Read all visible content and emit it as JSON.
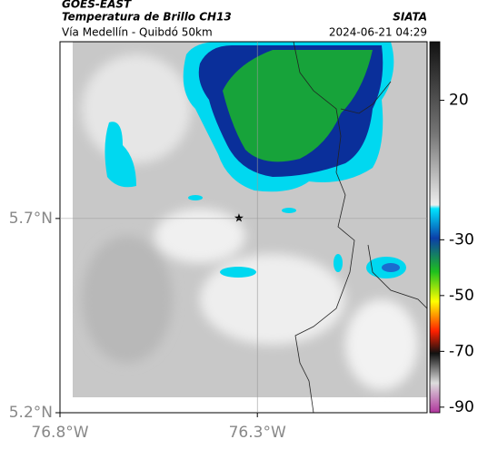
{
  "header": {
    "source": "GOES-EAST",
    "title": "Temperatura de Brillo CH13",
    "agency": "SIATA",
    "subtitle": "Vía Medellín - Quibdó 50km",
    "datetime": "2024-06-21 04:29"
  },
  "map": {
    "xlim": [
      -76.8,
      -75.87
    ],
    "ylim": [
      5.2,
      6.155
    ],
    "xticks": [
      {
        "value": -76.8,
        "label": "76.8°W"
      },
      {
        "value": -76.3,
        "label": "76.3°W"
      }
    ],
    "yticks": [
      {
        "value": 5.7,
        "label": "5.7°N"
      },
      {
        "value": 5.2,
        "label": "5.2°N"
      }
    ]
  },
  "colorbar": {
    "lim": [
      -92,
      41
    ],
    "ticks": [
      20,
      -30,
      -50,
      -70,
      -90
    ]
  }
}
